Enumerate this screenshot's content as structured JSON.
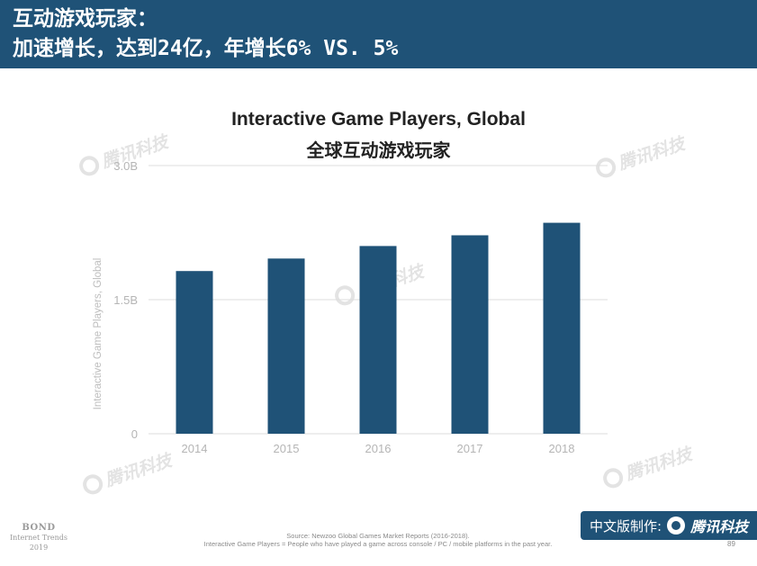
{
  "header": {
    "line1": "互动游戏玩家：",
    "line2": "加速增长，达到24亿，年增长6% VS. 5%"
  },
  "chart_data": {
    "type": "bar",
    "title": "Interactive Game Players, Global",
    "subtitle": "全球互动游戏玩家",
    "ylabel": "Interactive Game Players, Global",
    "categories": [
      "2014",
      "2015",
      "2016",
      "2017",
      "2018"
    ],
    "values": [
      1.82,
      1.96,
      2.1,
      2.22,
      2.36
    ],
    "ylim": [
      0,
      3.0
    ],
    "yticks": [
      {
        "value": 0,
        "label": "0"
      },
      {
        "value": 1.5,
        "label": "1.5B"
      },
      {
        "value": 3.0,
        "label": "3.0B"
      }
    ],
    "bar_color": "#1f5277",
    "grid": true,
    "legend": "none"
  },
  "footer": {
    "bond_name": "BOND",
    "bond_sub1": "Internet Trends",
    "bond_sub2": "2019",
    "source_line1": "Source: Newzoo Global Games Market Reports (2016-2018).",
    "source_line2": "Interactive Game Players = People who have played a game across console / PC / mobile platforms in the past year.",
    "page_number": "89",
    "credit_text": "中文版制作:",
    "credit_brand": "腾讯科技"
  },
  "watermarks": {
    "text": "腾讯科技"
  },
  "colors": {
    "header_bg": "#1f5277",
    "bar": "#1f5277",
    "grid": "#dddddd",
    "watermark": "#e3e3e3"
  }
}
